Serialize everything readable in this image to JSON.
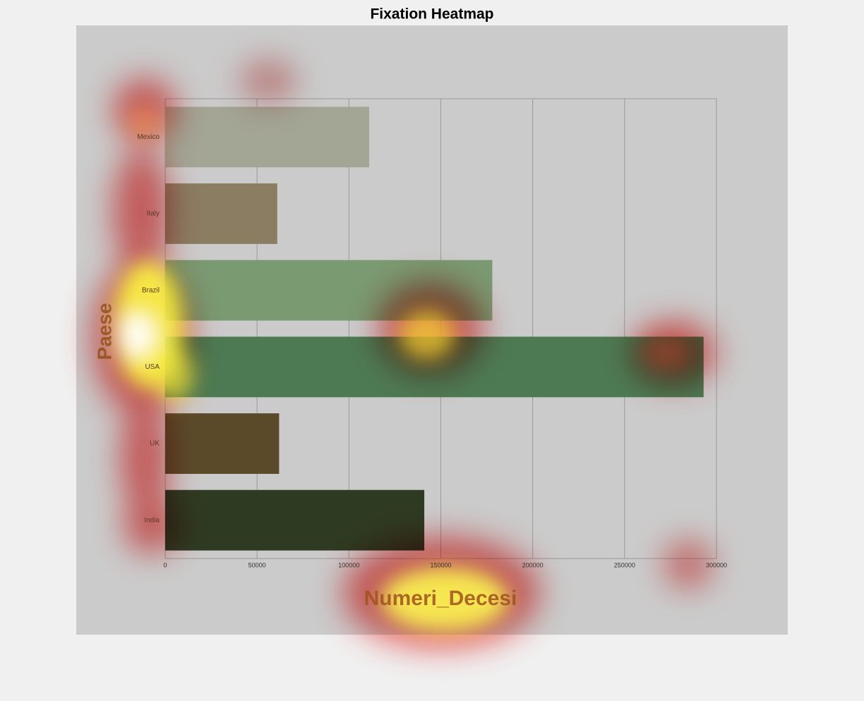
{
  "chart_data": {
    "type": "bar",
    "orientation": "horizontal",
    "title": "Fixation Heatmap",
    "xlabel": "Numeri_Decesi",
    "ylabel": "Paese",
    "categories": [
      "Mexico",
      "Italy",
      "Brazil",
      "USA",
      "UK",
      "India"
    ],
    "values": [
      111000,
      61000,
      178000,
      293000,
      62000,
      141000
    ],
    "colors": [
      "#a3a595",
      "#8a7d62",
      "#7a9a72",
      "#4d7a52",
      "#5a4a2a",
      "#2f3a22"
    ],
    "xlim": [
      0,
      300000
    ],
    "xticks": [
      0,
      50000,
      100000,
      150000,
      200000,
      250000,
      300000
    ],
    "grid": true
  }
}
